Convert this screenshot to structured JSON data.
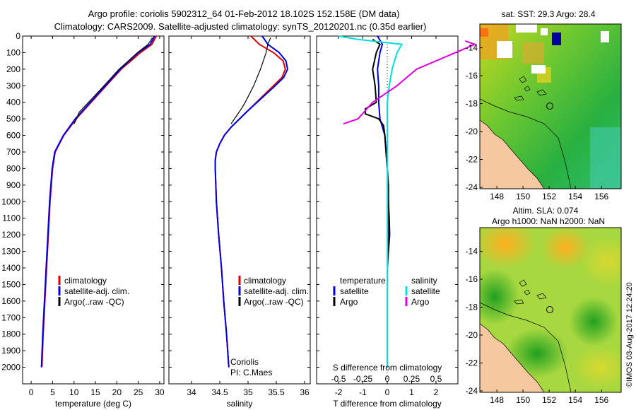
{
  "title_line1": "Argo profile: coriolis 5902312_64 01-Feb-2012 18.102S 152.158E (DM data)",
  "title_line2": "Climatology: CARS2009. Satellite-adjusted climatology: synTS_20120201.nc (0.35d earlier)",
  "colors": {
    "climatology": "#e00000",
    "satellite": "#0000e0",
    "argo": "#000000",
    "sat_salinity": "#00e0e0",
    "argo_salinity": "#e000e0",
    "land": "#f5c8a0"
  },
  "chart_data": [
    {
      "type": "line",
      "xlabel": "temperature (deg C)",
      "ylabel": "",
      "xlim": [
        -2,
        31
      ],
      "ylim": [
        2100,
        0
      ],
      "xticks": [
        "0",
        "5",
        "10",
        "15",
        "20",
        "25",
        "30"
      ],
      "yticks": [
        "0",
        "100",
        "200",
        "300",
        "400",
        "500",
        "600",
        "700",
        "800",
        "900",
        "1000",
        "1100",
        "1200",
        "1300",
        "1400",
        "1500",
        "1600",
        "1700",
        "1800",
        "1900",
        "2000"
      ],
      "legend": [
        "climatology",
        "satellite-adj. clim.",
        "Argo(..raw -QC)"
      ],
      "series": [
        {
          "name": "climatology",
          "depth": [
            0,
            50,
            100,
            150,
            200,
            300,
            400,
            500,
            600,
            700,
            800,
            1000,
            1200,
            1400,
            1600,
            1800,
            2000
          ],
          "values": [
            29.2,
            28.2,
            25.5,
            23.3,
            21.0,
            17.5,
            14.0,
            10.5,
            7.6,
            5.6,
            5.0,
            4.4,
            4.0,
            3.6,
            3.2,
            2.8,
            2.5
          ]
        },
        {
          "name": "satellite-adj. clim.",
          "depth": [
            0,
            50,
            100,
            150,
            200,
            300,
            400,
            500,
            600,
            700,
            800,
            1000,
            1200,
            1400,
            1600,
            1800,
            2000
          ],
          "values": [
            28.8,
            27.8,
            25.0,
            22.9,
            20.8,
            17.3,
            13.8,
            10.3,
            7.5,
            5.5,
            4.9,
            4.3,
            3.9,
            3.5,
            3.1,
            2.7,
            2.4
          ]
        },
        {
          "name": "Argo(..raw -QC)",
          "depth": [
            10,
            50,
            100,
            150,
            200,
            300,
            400,
            460,
            500,
            530
          ],
          "values": [
            28.3,
            27.3,
            24.8,
            22.7,
            20.5,
            17.0,
            13.4,
            11.2,
            10.6,
            10.0
          ]
        }
      ]
    },
    {
      "type": "line",
      "xlabel": "salinity",
      "xlim": [
        33.6,
        36.1
      ],
      "ylim": [
        2100,
        0
      ],
      "xticks": [
        "34",
        "34.5",
        "35",
        "35.5",
        "36"
      ],
      "legend": [
        "climatology",
        "satellite-adj. clim.",
        "Argo(..raw -QC)"
      ],
      "annotation": [
        "Coriolis",
        "PI: C.Maes"
      ],
      "series": [
        {
          "name": "climatology",
          "depth": [
            0,
            50,
            100,
            150,
            200,
            250,
            300,
            350,
            400,
            450,
            500,
            550,
            600,
            650,
            700,
            750,
            800,
            1000,
            1200,
            1400,
            1600,
            1800,
            2000
          ],
          "values": [
            35.05,
            35.2,
            35.45,
            35.62,
            35.66,
            35.6,
            35.45,
            35.3,
            35.15,
            35.0,
            34.85,
            34.7,
            34.58,
            34.5,
            34.44,
            34.42,
            34.42,
            34.44,
            34.48,
            34.53,
            34.57,
            34.62,
            34.66
          ]
        },
        {
          "name": "satellite-adj. clim.",
          "depth": [
            0,
            50,
            100,
            150,
            200,
            250,
            300,
            350,
            400,
            450,
            500,
            550,
            600,
            650,
            700,
            750,
            800,
            1000,
            1200,
            1400,
            1600,
            1800,
            2000
          ],
          "values": [
            35.25,
            35.35,
            35.55,
            35.67,
            35.7,
            35.63,
            35.48,
            35.32,
            35.16,
            35.0,
            34.85,
            34.7,
            34.58,
            34.5,
            34.44,
            34.42,
            34.42,
            34.44,
            34.48,
            34.53,
            34.57,
            34.62,
            34.66
          ]
        },
        {
          "name": "Argo(..raw -QC)",
          "depth": [
            10,
            50,
            100,
            200,
            300,
            400,
            430,
            480,
            530
          ],
          "values": [
            35.4,
            35.35,
            35.32,
            35.22,
            35.1,
            34.95,
            34.9,
            34.8,
            34.7
          ]
        }
      ]
    },
    {
      "type": "line",
      "xlabel": "T difference from climatology",
      "xlabel2": "S difference from climatology",
      "xlim": [
        -2.9,
        2.9
      ],
      "ylim": [
        2100,
        0
      ],
      "xticks": [
        "-2",
        "-1",
        "0",
        "1",
        "2"
      ],
      "xticks2": [
        "-0.5",
        "-0.25",
        "0",
        "0.25",
        "0.5"
      ],
      "legend_groups": [
        "temperature",
        "salinity"
      ],
      "legend": [
        "satellite",
        "Argo",
        "satellite",
        "Argo"
      ],
      "series": [
        {
          "name": "temperature satellite",
          "depth": [
            0,
            50,
            100,
            200,
            300,
            400,
            500,
            600,
            800,
            1000,
            1200,
            1400,
            1600,
            1800,
            2000
          ],
          "values": [
            -0.4,
            -0.2,
            -0.3,
            -0.4,
            -0.35,
            -0.35,
            -0.3,
            -0.1,
            0.0,
            0.05,
            0.05,
            0.0,
            0.0,
            0.0,
            0.0
          ]
        },
        {
          "name": "temperature Argo",
          "depth": [
            20,
            50,
            100,
            200,
            300,
            400,
            440,
            470,
            500,
            540,
            600,
            700,
            800,
            900,
            1000,
            1100,
            1200,
            1300,
            1400
          ],
          "values": [
            -0.6,
            -0.3,
            -0.45,
            -0.6,
            -0.5,
            -0.45,
            -0.9,
            -0.9,
            -0.35,
            -0.15,
            -0.1,
            -0.05,
            0.0,
            0.05,
            0.05,
            0.08,
            0.1,
            0.05,
            0.0
          ]
        },
        {
          "name": "salinity satellite",
          "depth": [
            0,
            20,
            50,
            100,
            200,
            300,
            400,
            500,
            600,
            800,
            1000,
            1200,
            1400,
            1600,
            1800,
            2000
          ],
          "values": [
            -0.5,
            -0.3,
            0.15,
            0.1,
            0.05,
            0.02,
            0.0,
            0.0,
            0.0,
            0.0,
            0.0,
            0.0,
            0.0,
            0.0,
            0.0,
            0.0
          ]
        },
        {
          "name": "salinity Argo",
          "depth": [
            30,
            50,
            100,
            200,
            300,
            400,
            500,
            530
          ],
          "values": [
            0.8,
            0.9,
            0.7,
            0.3,
            0.1,
            -0.15,
            -0.3,
            -0.45
          ]
        }
      ]
    },
    {
      "type": "heatmap",
      "title": "sat. SST: 29.3 Argo: 28.4",
      "xticks": [
        "148",
        "150",
        "152",
        "154",
        "156"
      ],
      "yticks": [
        "-14",
        "-16",
        "-18",
        "-20",
        "-22",
        "-24"
      ],
      "xlim": [
        146.7,
        157.5
      ],
      "ylim": [
        -24.1,
        -12.3
      ],
      "argo_position": [
        152.158,
        -18.102
      ]
    },
    {
      "type": "heatmap",
      "title_line1": "Altim. SLA: 0.074",
      "title_line2": "Argo h1000: NaN h2000: NaN",
      "xticks": [
        "148",
        "150",
        "152",
        "154",
        "156"
      ],
      "yticks": [
        "-14",
        "-16",
        "-18",
        "-20",
        "-22",
        "-24"
      ],
      "xlim": [
        146.7,
        157.5
      ],
      "ylim": [
        -24.1,
        -12.3
      ],
      "argo_position": [
        152.158,
        -18.102
      ]
    }
  ],
  "credit": "©IMOS 03-Aug-2017 12:24:20"
}
